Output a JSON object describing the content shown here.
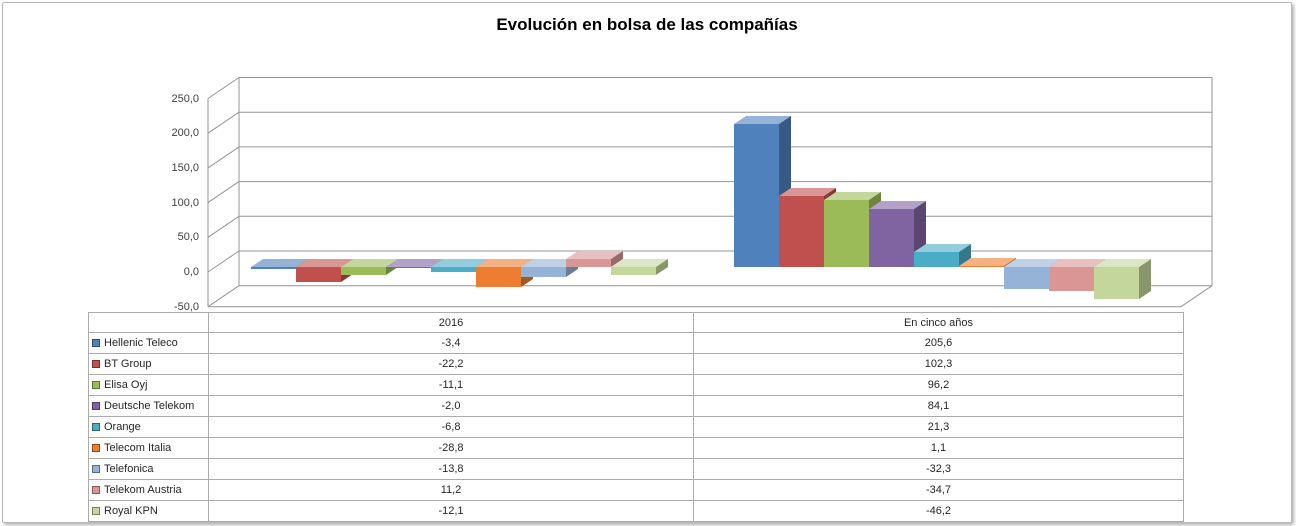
{
  "title": "Evolución en bolsa de las compañías",
  "chart_data": {
    "type": "bar",
    "style": "3d-clustered-column",
    "categories": [
      "2016",
      "En cinco años"
    ],
    "series": [
      {
        "name": "Hellenic Teleco",
        "color": "#4F81BD",
        "values": [
          -3.4,
          205.6
        ],
        "display": [
          "-3,4",
          "205,6"
        ]
      },
      {
        "name": "BT Group",
        "color": "#C0504D",
        "values": [
          -22.2,
          102.3
        ],
        "display": [
          "-22,2",
          "102,3"
        ]
      },
      {
        "name": "Elisa Oyj",
        "color": "#9BBB59",
        "values": [
          -11.1,
          96.2
        ],
        "display": [
          "-11,1",
          "96,2"
        ]
      },
      {
        "name": "Deutsche Telekom",
        "color": "#8064A2",
        "values": [
          -2.0,
          84.1
        ],
        "display": [
          "-2,0",
          "84,1"
        ]
      },
      {
        "name": "Orange",
        "color": "#4BACC6",
        "values": [
          -6.8,
          21.3
        ],
        "display": [
          "-6,8",
          "21,3"
        ]
      },
      {
        "name": "Telecom Italia",
        "color": "#ED7D31",
        "values": [
          -28.8,
          1.1
        ],
        "display": [
          "-28,8",
          "1,1"
        ]
      },
      {
        "name": "Telefonica",
        "color": "#95B3D7",
        "values": [
          -13.8,
          -32.3
        ],
        "display": [
          "-13,8",
          "-32,3"
        ]
      },
      {
        "name": "Telekom Austria",
        "color": "#D99694",
        "values": [
          11.2,
          -34.7
        ],
        "display": [
          "11,2",
          "-34,7"
        ]
      },
      {
        "name": "Royal KPN",
        "color": "#C3D69B",
        "values": [
          -12.1,
          -46.2
        ],
        "display": [
          "-12,1",
          "-46,2"
        ]
      }
    ],
    "y_axis": {
      "min": -50,
      "max": 250,
      "step": 50,
      "tick_labels": [
        "250,0",
        "200,0",
        "150,0",
        "100,0",
        "50,0",
        "0,0",
        "-50,0"
      ]
    },
    "grid": true,
    "legend_position": "table-left-column",
    "grid_color": "#949494",
    "background": "#FFFFFF"
  }
}
